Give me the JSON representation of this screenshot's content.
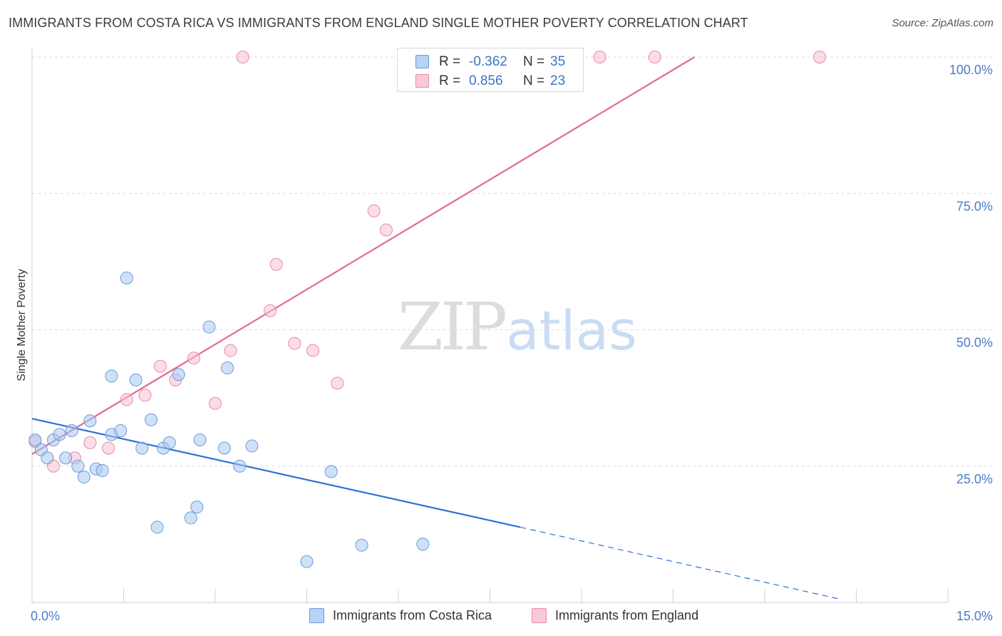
{
  "header": {
    "title": "IMMIGRANTS FROM COSTA RICA VS IMMIGRANTS FROM ENGLAND SINGLE MOTHER POVERTY CORRELATION CHART",
    "source": "Source: ZipAtlas.com"
  },
  "watermark": {
    "zip": "ZIP",
    "atlas": "atlas"
  },
  "legend": {
    "rows": [
      {
        "r_label": "R =",
        "r_value": "-0.362",
        "n_label": "N =",
        "n_value": "35"
      },
      {
        "r_label": "R =",
        "r_value": "0.856",
        "n_label": "N =",
        "n_value": "23"
      }
    ]
  },
  "chart_data": {
    "type": "scatter",
    "title": "IMMIGRANTS FROM COSTA RICA VS IMMIGRANTS FROM ENGLAND SINGLE MOTHER POVERTY CORRELATION CHART",
    "ylabel": "Single Mother Poverty",
    "xlabel": "",
    "xlim": [
      0,
      15
    ],
    "ylim": [
      0,
      100
    ],
    "x_ticks": [
      0,
      15
    ],
    "x_tick_labels": [
      "0.0%",
      "15.0%"
    ],
    "y_ticks": [
      25,
      50,
      75,
      100
    ],
    "y_tick_labels": [
      "25.0%",
      "50.0%",
      "75.0%",
      "100.0%"
    ],
    "grid": true,
    "legend_placement": "top-center",
    "series": [
      {
        "name": "Immigrants from Costa Rica",
        "color": "#a9c8f0",
        "edge_color": "#6a9bdc",
        "line_color": "#2f72d1",
        "r": -0.362,
        "n": 35,
        "trend": {
          "x0": 0,
          "y0": 33.7,
          "x1": 8.0,
          "y1": 13.8,
          "dash_to_x": 13.2,
          "dash_to_y": 0.7
        },
        "points": [
          [
            0.05,
            29.8
          ],
          [
            0.15,
            28.0
          ],
          [
            0.25,
            26.5
          ],
          [
            0.35,
            29.8
          ],
          [
            0.45,
            30.8
          ],
          [
            0.55,
            26.5
          ],
          [
            0.65,
            31.5
          ],
          [
            0.75,
            25.0
          ],
          [
            0.85,
            23.0
          ],
          [
            0.95,
            33.3
          ],
          [
            1.05,
            24.5
          ],
          [
            1.15,
            24.2
          ],
          [
            1.3,
            30.8
          ],
          [
            1.3,
            41.5
          ],
          [
            1.45,
            31.5
          ],
          [
            1.55,
            59.5
          ],
          [
            1.7,
            40.8
          ],
          [
            1.8,
            28.3
          ],
          [
            1.95,
            33.5
          ],
          [
            2.05,
            13.8
          ],
          [
            2.15,
            28.3
          ],
          [
            2.25,
            29.3
          ],
          [
            2.4,
            41.8
          ],
          [
            2.6,
            15.5
          ],
          [
            2.7,
            17.5
          ],
          [
            2.75,
            29.8
          ],
          [
            2.9,
            50.5
          ],
          [
            3.15,
            28.3
          ],
          [
            3.2,
            43.0
          ],
          [
            3.4,
            25.0
          ],
          [
            3.6,
            28.7
          ],
          [
            4.5,
            7.5
          ],
          [
            4.9,
            24.0
          ],
          [
            5.4,
            10.5
          ],
          [
            6.4,
            10.7
          ]
        ]
      },
      {
        "name": "Immigrants from England",
        "color": "#f7c1d1",
        "edge_color": "#e98aa7",
        "line_color": "#e06b92",
        "r": 0.856,
        "n": 23,
        "trend": {
          "x0": 0,
          "y0": 27.2,
          "x1": 10.85,
          "y1": 100.0
        },
        "points": [
          [
            0.05,
            29.5
          ],
          [
            0.35,
            25.0
          ],
          [
            0.7,
            26.5
          ],
          [
            0.95,
            29.3
          ],
          [
            1.25,
            28.3
          ],
          [
            1.55,
            37.2
          ],
          [
            1.85,
            38.0
          ],
          [
            2.1,
            43.3
          ],
          [
            2.35,
            40.8
          ],
          [
            2.65,
            44.8
          ],
          [
            3.0,
            36.5
          ],
          [
            3.25,
            46.2
          ],
          [
            3.45,
            100.0
          ],
          [
            3.9,
            53.5
          ],
          [
            4.0,
            62.0
          ],
          [
            4.3,
            47.5
          ],
          [
            4.6,
            46.2
          ],
          [
            5.0,
            40.2
          ],
          [
            5.6,
            71.8
          ],
          [
            5.8,
            68.3
          ],
          [
            9.3,
            100.0
          ],
          [
            10.2,
            100.0
          ],
          [
            12.9,
            100.0
          ]
        ]
      }
    ]
  }
}
